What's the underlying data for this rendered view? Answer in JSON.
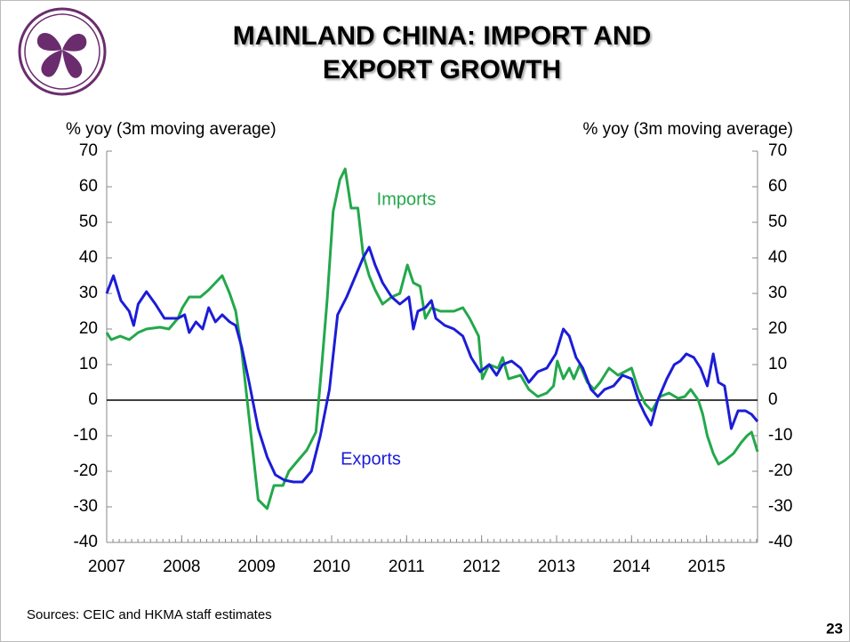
{
  "chart_data": {
    "type": "line",
    "title": "MAINLAND CHINA: IMPORT AND EXPORT GROWTH",
    "y_label": "% yoy (3m moving average)",
    "y2_label": "% yoy (3m moving average)",
    "source": "Sources: CEIC and HKMA staff estimates",
    "page_number": "23",
    "xlim": [
      2007,
      2015.68
    ],
    "xticks": [
      2007,
      2008,
      2009,
      2010,
      2011,
      2012,
      2013,
      2014,
      2015
    ],
    "ylim": [
      -40,
      70
    ],
    "yticks": [
      -40,
      -30,
      -20,
      -10,
      0,
      10,
      20,
      30,
      40,
      50,
      60,
      70
    ],
    "y2lim": [
      -40,
      70
    ],
    "y2ticks": [
      -40,
      -30,
      -20,
      -10,
      0,
      10,
      20,
      30,
      40,
      50,
      60,
      70
    ],
    "zero_line": true,
    "series": [
      {
        "name": "Imports",
        "color": "#23a84b",
        "x": [
          2007.0,
          2007.06,
          2007.18,
          2007.3,
          2007.42,
          2007.53,
          2007.71,
          2007.83,
          2007.95,
          2008.01,
          2008.1,
          2008.25,
          2008.36,
          2008.54,
          2008.64,
          2008.72,
          2008.8,
          2008.9,
          2009.02,
          2009.14,
          2009.23,
          2009.35,
          2009.43,
          2009.55,
          2009.67,
          2009.79,
          2009.87,
          2009.94,
          2010.02,
          2010.11,
          2010.18,
          2010.26,
          2010.35,
          2010.42,
          2010.5,
          2010.58,
          2010.68,
          2010.8,
          2010.91,
          2011.01,
          2011.09,
          2011.18,
          2011.25,
          2011.33,
          2011.45,
          2011.63,
          2011.75,
          2011.84,
          2011.96,
          2012.01,
          2012.1,
          2012.22,
          2012.28,
          2012.36,
          2012.52,
          2012.63,
          2012.75,
          2012.87,
          2012.96,
          2013.01,
          2013.09,
          2013.17,
          2013.23,
          2013.31,
          2013.41,
          2013.5,
          2013.58,
          2013.7,
          2013.82,
          2014.0,
          2014.09,
          2014.18,
          2014.27,
          2014.38,
          2014.5,
          2014.62,
          2014.71,
          2014.79,
          2014.89,
          2014.95,
          2015.01,
          2015.09,
          2015.16,
          2015.24,
          2015.36,
          2015.46,
          2015.54,
          2015.6,
          2015.68
        ],
        "values": [
          19,
          17,
          18,
          17,
          19,
          20,
          20.5,
          20,
          23,
          26,
          29,
          29,
          31,
          35,
          30,
          25,
          14,
          -5,
          -28,
          -30.5,
          -24,
          -24,
          -20,
          -17,
          -14,
          -9,
          10,
          28,
          53,
          62,
          65,
          54,
          54,
          41,
          35,
          31,
          27,
          29,
          30,
          38,
          33,
          32,
          23,
          26,
          25,
          25,
          26,
          23,
          18,
          6,
          10,
          9,
          12,
          6,
          7,
          3,
          1,
          2,
          4,
          11,
          6,
          9,
          6,
          10,
          5,
          3,
          5,
          9,
          7,
          9,
          3,
          -1,
          -3,
          1,
          2,
          0.5,
          1,
          3,
          0,
          -4,
          -10,
          -15,
          -18,
          -17,
          -15,
          -12,
          -10,
          -9,
          -14.5
        ]
      },
      {
        "name": "Exports",
        "color": "#1c1cd8",
        "x": [
          2007.0,
          2007.09,
          2007.19,
          2007.3,
          2007.36,
          2007.42,
          2007.53,
          2007.65,
          2007.77,
          2007.95,
          2008.04,
          2008.1,
          2008.19,
          2008.28,
          2008.36,
          2008.45,
          2008.54,
          2008.64,
          2008.72,
          2008.8,
          2008.9,
          2009.02,
          2009.14,
          2009.25,
          2009.37,
          2009.49,
          2009.61,
          2009.73,
          2009.85,
          2009.97,
          2010.08,
          2010.2,
          2010.32,
          2010.42,
          2010.5,
          2010.58,
          2010.68,
          2010.8,
          2010.91,
          2011.03,
          2011.09,
          2011.15,
          2011.25,
          2011.33,
          2011.39,
          2011.51,
          2011.63,
          2011.75,
          2011.86,
          2011.98,
          2012.1,
          2012.2,
          2012.28,
          2012.4,
          2012.52,
          2012.63,
          2012.75,
          2012.87,
          2012.99,
          2013.09,
          2013.17,
          2013.26,
          2013.35,
          2013.46,
          2013.55,
          2013.64,
          2013.76,
          2013.88,
          2014.0,
          2014.09,
          2014.18,
          2014.26,
          2014.35,
          2014.47,
          2014.57,
          2014.65,
          2014.73,
          2014.83,
          2014.92,
          2015.01,
          2015.09,
          2015.16,
          2015.24,
          2015.33,
          2015.42,
          2015.52,
          2015.6,
          2015.68
        ],
        "values": [
          30,
          35,
          28,
          25,
          21,
          27,
          30.5,
          27,
          23,
          23,
          24,
          19,
          22,
          20,
          26,
          22,
          24,
          22,
          21,
          15,
          5,
          -8,
          -16,
          -21,
          -22.5,
          -23,
          -23,
          -20,
          -10,
          3,
          24,
          29,
          35,
          40,
          43,
          38,
          33,
          29,
          27,
          29,
          20,
          25,
          26,
          28,
          23,
          21,
          20,
          18,
          12,
          8,
          10,
          7,
          10,
          11,
          9,
          5,
          8,
          9,
          13,
          20,
          18,
          12,
          9,
          3,
          1,
          3,
          4,
          7,
          6,
          0,
          -4,
          -7,
          0,
          6,
          10,
          11,
          13,
          12,
          9,
          4,
          13,
          5,
          4,
          -8,
          -3,
          -3,
          -4,
          -6
        ]
      }
    ]
  }
}
